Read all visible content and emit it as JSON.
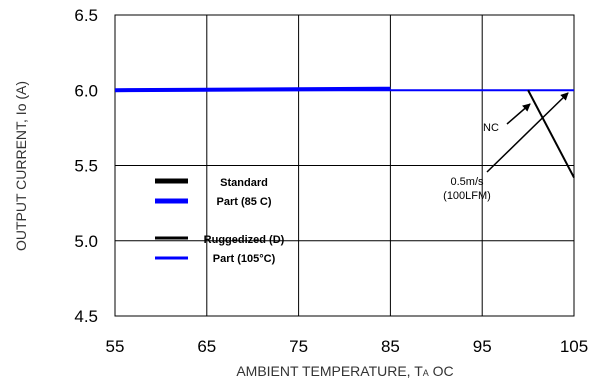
{
  "chart_data": {
    "type": "line",
    "xlabel": "AMBIENT TEMPERATURE, T",
    "xlabel_sub": "A",
    "xlabel_unit": " OC",
    "ylabel": "OUTPUT CURRENT, Io  (A)",
    "xlim": [
      55,
      105
    ],
    "ylim": [
      4.5,
      6.5
    ],
    "x_ticks": [
      "55",
      "65",
      "75",
      "85",
      "95",
      "105"
    ],
    "y_ticks": [
      "4.5",
      "5.0",
      "5.5",
      "6.0",
      "6.5"
    ],
    "grid": true,
    "series": [
      {
        "name": "Standard Part (85 C)",
        "color": "#0000ff",
        "style": "thick",
        "x": [
          55,
          85
        ],
        "y": [
          6.0,
          6.01
        ]
      },
      {
        "name": "Ruggedized (D) Part (105°C)",
        "color": "#0000ff",
        "style": "thin",
        "x": [
          55,
          105
        ],
        "y": [
          6.0,
          6.0
        ]
      },
      {
        "name": "NC",
        "color": "#000000",
        "style": "thin",
        "x": [
          100,
          105
        ],
        "y": [
          6.0,
          5.42
        ]
      }
    ],
    "legend": [
      {
        "line1": "Standard",
        "line2": "Part (85 C)",
        "black_style": "thick",
        "blue_style": "thick"
      },
      {
        "line1": "Ruggedized (D)",
        "line2": "Part (105°C)",
        "black_style": "thin",
        "blue_style": "thin"
      }
    ],
    "annotations": [
      {
        "text": "NC"
      },
      {
        "text": "0.5m/s"
      },
      {
        "text": "(100LFM)"
      }
    ]
  }
}
